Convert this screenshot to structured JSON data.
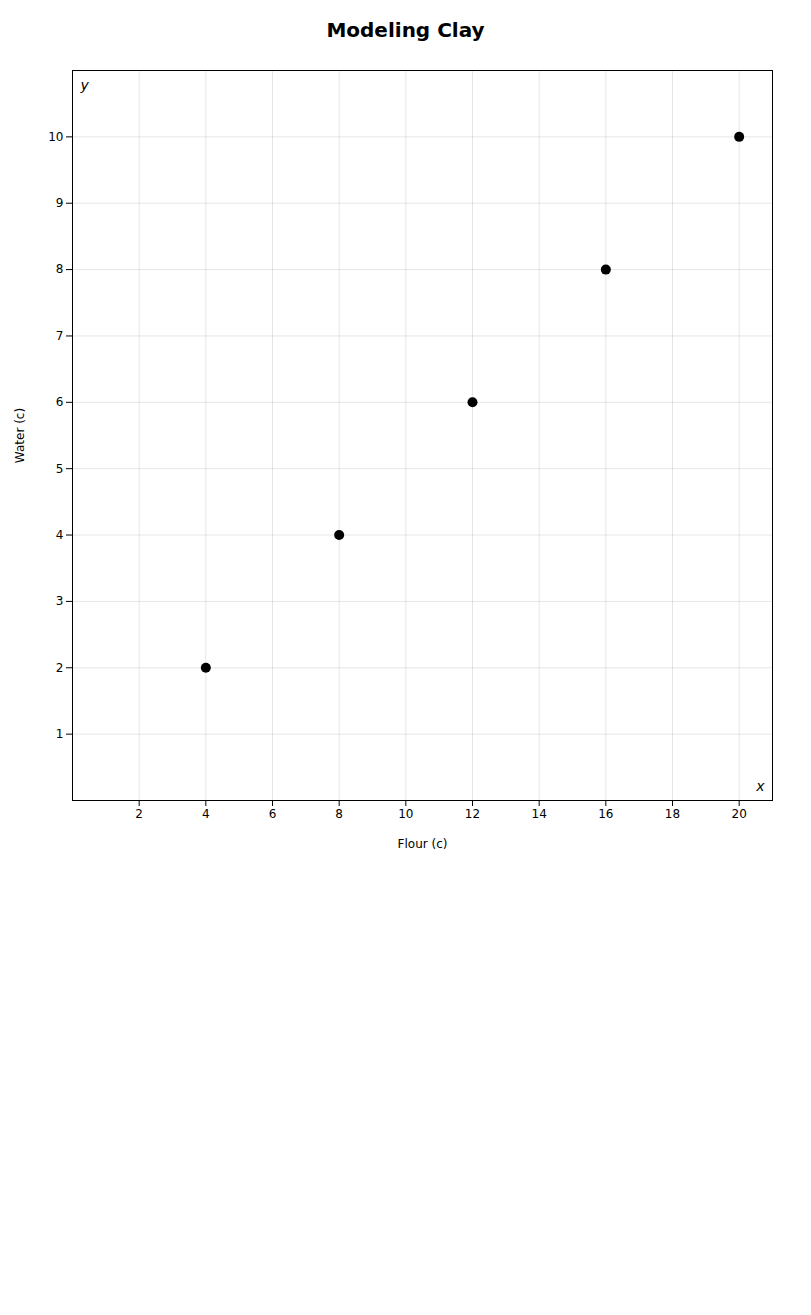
{
  "chart_data": {
    "type": "scatter",
    "title": "Modeling Clay",
    "xlabel": "Flour (c)",
    "ylabel": "Water (c)",
    "x": [
      4,
      8,
      12,
      16,
      20
    ],
    "values": [
      2,
      4,
      6,
      8,
      10
    ],
    "color": "black",
    "xlim": [
      0,
      21
    ],
    "ylim": [
      0,
      11
    ],
    "xticks": [
      2,
      4,
      6,
      8,
      10,
      12,
      14,
      16,
      18,
      20
    ],
    "yticks": [
      1,
      2,
      3,
      4,
      5,
      6,
      7,
      8,
      9,
      10
    ],
    "grid": true,
    "annotations": [
      {
        "text": "y"
      },
      {
        "text": "x"
      }
    ]
  }
}
